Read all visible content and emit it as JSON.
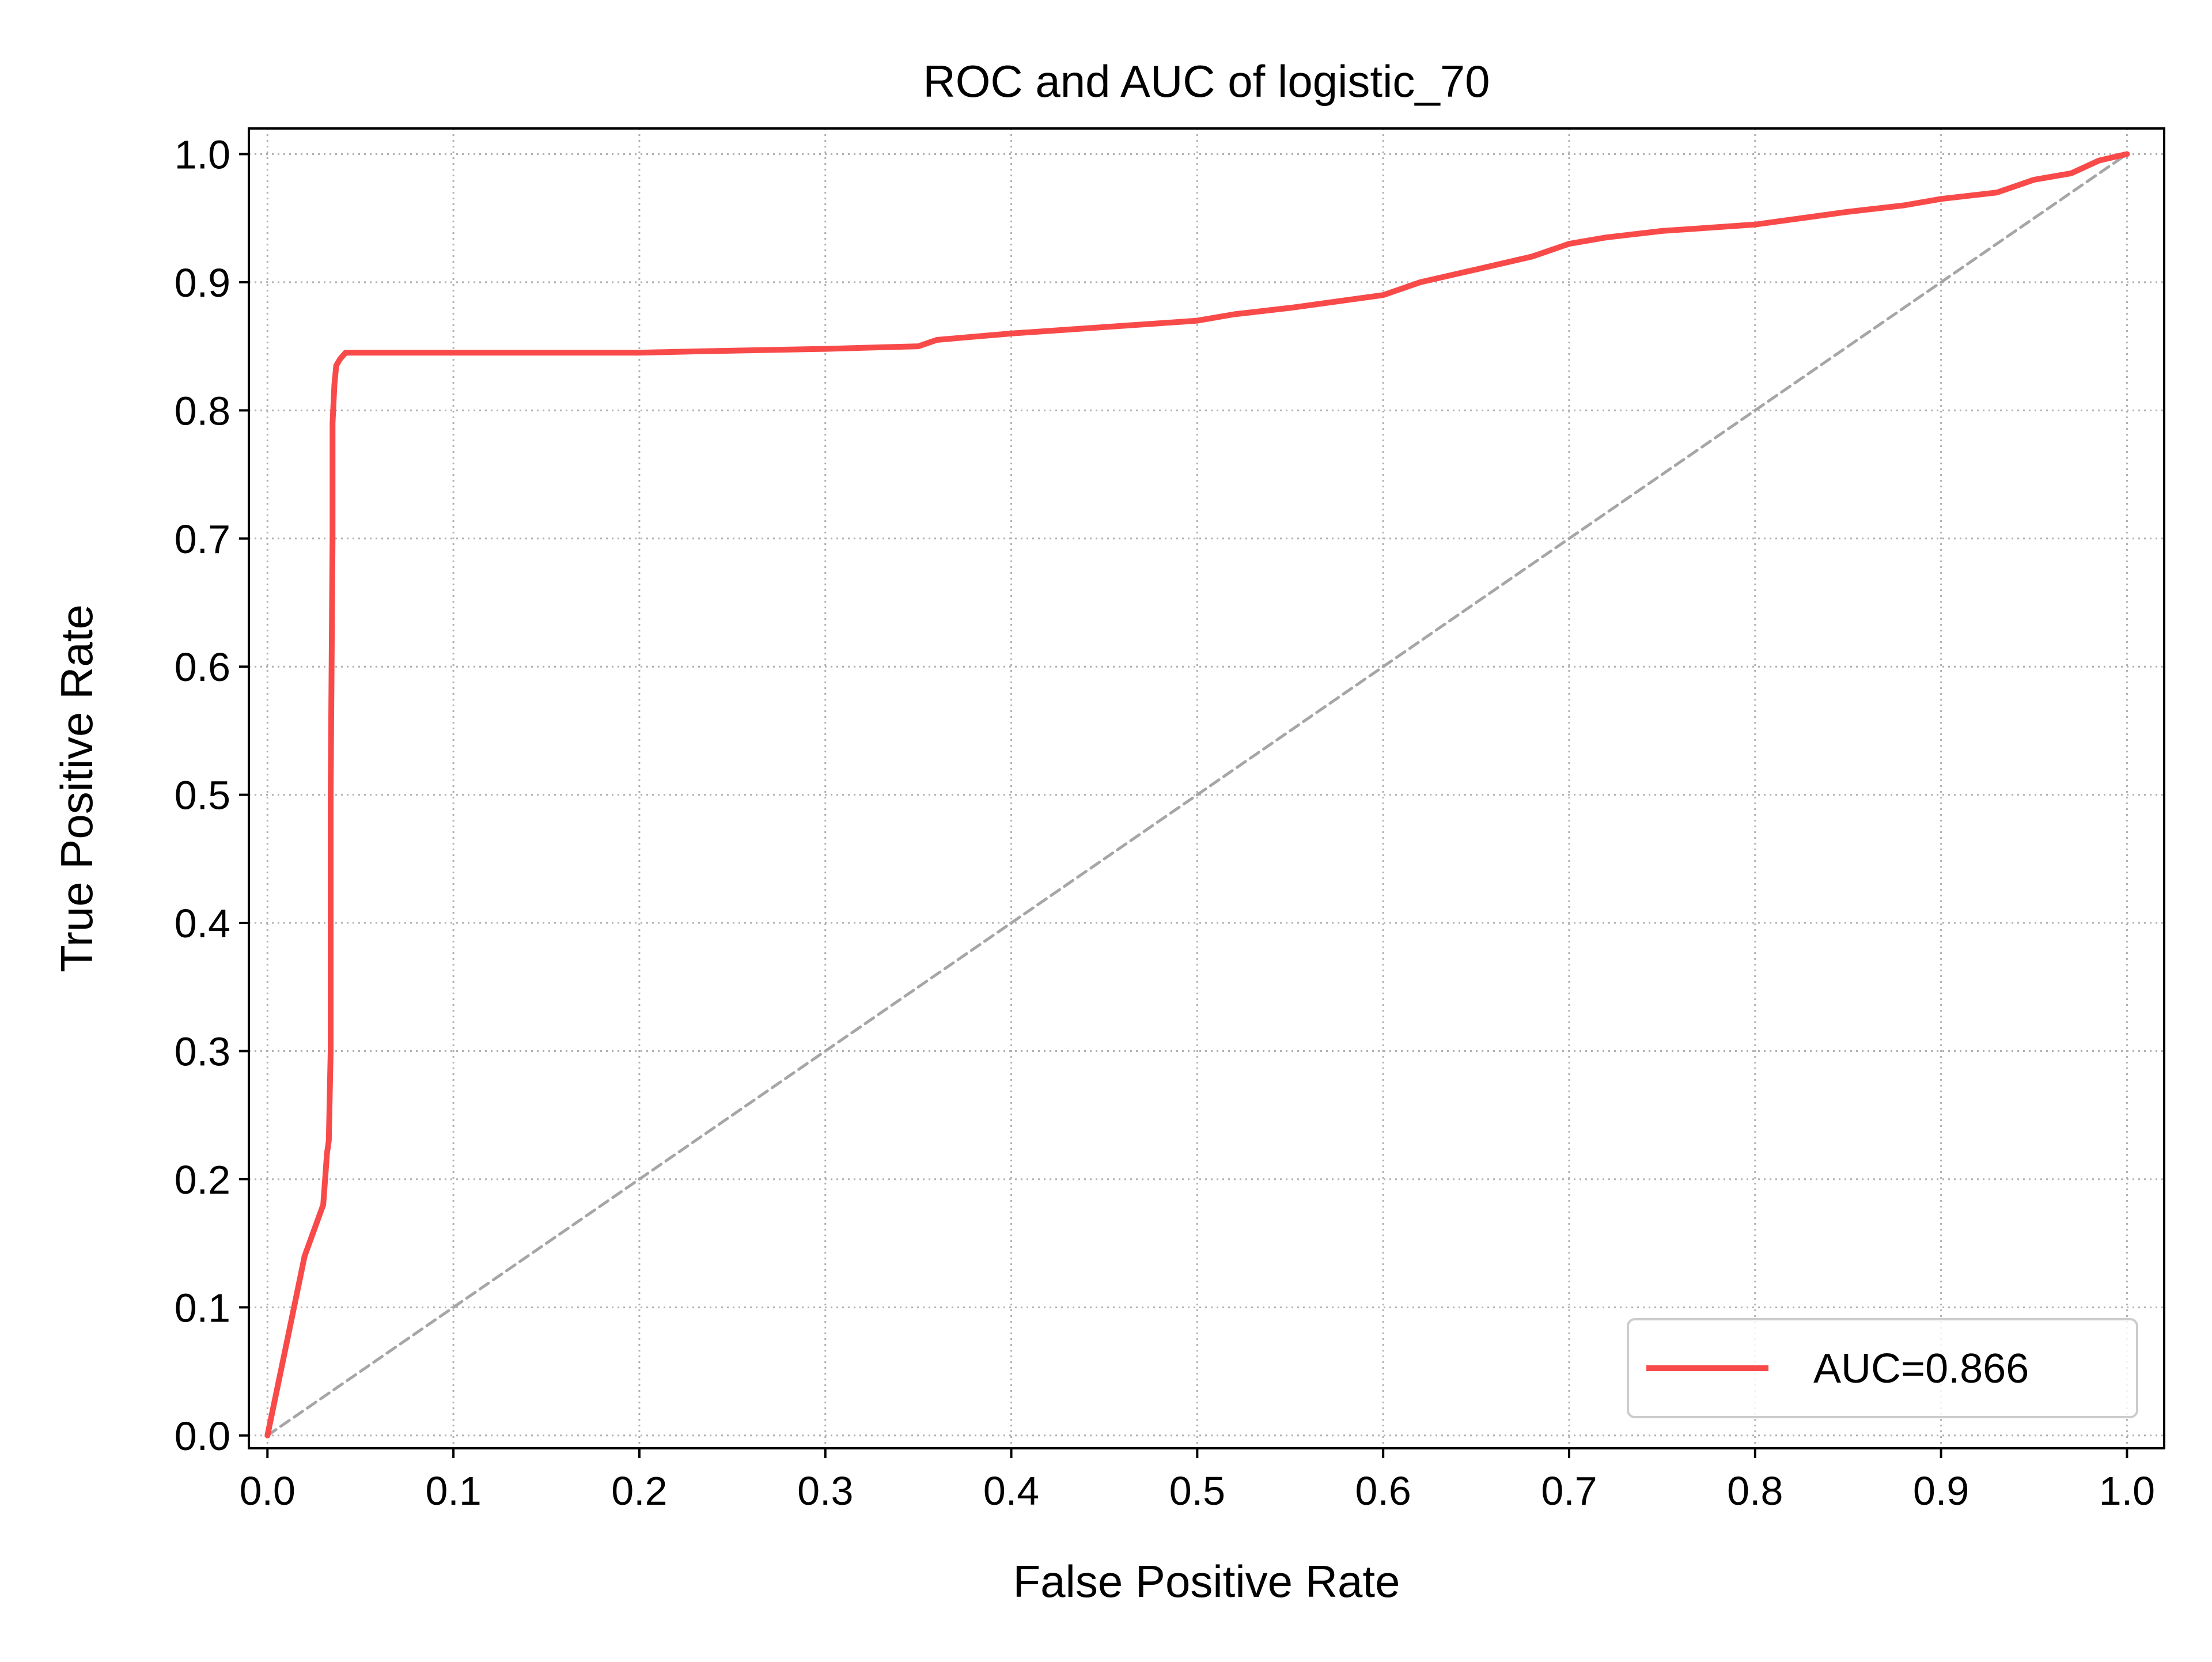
{
  "chart_data": {
    "type": "line",
    "title": "ROC and AUC of logistic_70",
    "xlabel": "False Positive Rate",
    "ylabel": "True Positive Rate",
    "xlim": [
      -0.01,
      1.02
    ],
    "ylim": [
      -0.01,
      1.02
    ],
    "xticks": [
      0.0,
      0.1,
      0.2,
      0.3,
      0.4,
      0.5,
      0.6,
      0.7,
      0.8,
      0.9,
      1.0
    ],
    "yticks": [
      0.0,
      0.1,
      0.2,
      0.3,
      0.4,
      0.5,
      0.6,
      0.7,
      0.8,
      0.9,
      1.0
    ],
    "xtick_labels": [
      "0.0",
      "0.1",
      "0.2",
      "0.3",
      "0.4",
      "0.5",
      "0.6",
      "0.7",
      "0.8",
      "0.9",
      "1.0"
    ],
    "ytick_labels": [
      "0.0",
      "0.1",
      "0.2",
      "0.3",
      "0.4",
      "0.5",
      "0.6",
      "0.7",
      "0.8",
      "0.9",
      "1.0"
    ],
    "grid": true,
    "grid_style": "dotted",
    "legend_position": "lower-right",
    "series": [
      {
        "name": "AUC=0.866",
        "color": "#f94a4a",
        "x": [
          0.0,
          0.01,
          0.02,
          0.03,
          0.031,
          0.032,
          0.033,
          0.034,
          0.034,
          0.035,
          0.035,
          0.036,
          0.037,
          0.039,
          0.042,
          0.05,
          0.1,
          0.2,
          0.23,
          0.3,
          0.35,
          0.36,
          0.4,
          0.45,
          0.48,
          0.5,
          0.52,
          0.55,
          0.6,
          0.62,
          0.65,
          0.68,
          0.7,
          0.72,
          0.75,
          0.8,
          0.85,
          0.88,
          0.9,
          0.93,
          0.95,
          0.97,
          0.985,
          1.0
        ],
        "y": [
          0.0,
          0.07,
          0.14,
          0.18,
          0.2,
          0.22,
          0.23,
          0.3,
          0.5,
          0.7,
          0.79,
          0.82,
          0.835,
          0.84,
          0.845,
          0.845,
          0.845,
          0.845,
          0.846,
          0.848,
          0.85,
          0.855,
          0.86,
          0.865,
          0.868,
          0.87,
          0.875,
          0.88,
          0.89,
          0.9,
          0.91,
          0.92,
          0.93,
          0.935,
          0.94,
          0.945,
          0.955,
          0.96,
          0.965,
          0.97,
          0.98,
          0.985,
          0.995,
          1.0
        ]
      },
      {
        "name": "",
        "color": "#a6a6a6",
        "dashed": true,
        "x": [
          0.0,
          1.0
        ],
        "y": [
          0.0,
          1.0
        ]
      }
    ],
    "legend": {
      "label": "AUC=0.866",
      "color": "#f94a4a"
    }
  }
}
